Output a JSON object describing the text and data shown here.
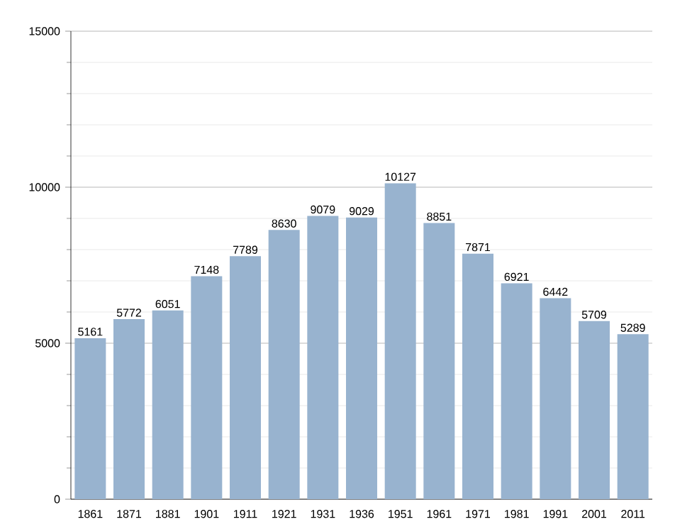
{
  "chart_data": {
    "type": "bar",
    "categories": [
      "1861",
      "1871",
      "1881",
      "1901",
      "1911",
      "1921",
      "1931",
      "1936",
      "1951",
      "1961",
      "1971",
      "1981",
      "1991",
      "2001",
      "2011"
    ],
    "values": [
      5161,
      5772,
      6051,
      7148,
      7789,
      8630,
      9079,
      9029,
      10127,
      8851,
      7871,
      6921,
      6442,
      5709,
      5289
    ],
    "color": "#98b3cf",
    "ylim": [
      0,
      15000
    ],
    "yticks": [
      0,
      5000,
      10000,
      15000
    ],
    "grid": "y",
    "data_labels": true
  }
}
